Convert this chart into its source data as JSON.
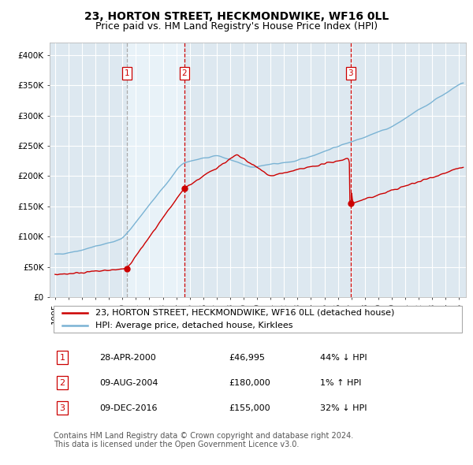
{
  "title": "23, HORTON STREET, HECKMONDWIKE, WF16 0LL",
  "subtitle": "Price paid vs. HM Land Registry's House Price Index (HPI)",
  "ylim": [
    0,
    420000
  ],
  "yticks": [
    0,
    50000,
    100000,
    150000,
    200000,
    250000,
    300000,
    350000,
    400000
  ],
  "ytick_labels": [
    "£0",
    "£50K",
    "£100K",
    "£150K",
    "£200K",
    "£250K",
    "£300K",
    "£350K",
    "£400K"
  ],
  "xlim_start": 1994.6,
  "xlim_end": 2025.5,
  "hpi_color": "#7ab3d4",
  "price_color": "#cc0000",
  "vline_color_sale": "#cc0000",
  "vline_color_dash1": "#aaaaaa",
  "background_plot": "#dde8f0",
  "background_between": "#e8f2f8",
  "background_fig": "#ffffff",
  "grid_color": "#ffffff",
  "legend_label_price": "23, HORTON STREET, HECKMONDWIKE, WF16 0LL (detached house)",
  "legend_label_hpi": "HPI: Average price, detached house, Kirklees",
  "sale1_date": 2000.32,
  "sale1_price": 46995,
  "sale2_date": 2004.61,
  "sale2_price": 180000,
  "sale3_date": 2016.94,
  "sale3_price": 155000,
  "table_data": [
    [
      "1",
      "28-APR-2000",
      "£46,995",
      "44% ↓ HPI"
    ],
    [
      "2",
      "09-AUG-2004",
      "£180,000",
      "1% ↑ HPI"
    ],
    [
      "3",
      "09-DEC-2016",
      "£155,000",
      "32% ↓ HPI"
    ]
  ],
  "footer_text": "Contains HM Land Registry data © Crown copyright and database right 2024.\nThis data is licensed under the Open Government Licence v3.0.",
  "title_fontsize": 10,
  "subtitle_fontsize": 9,
  "tick_fontsize": 7.5,
  "legend_fontsize": 8,
  "table_fontsize": 8,
  "footer_fontsize": 7
}
